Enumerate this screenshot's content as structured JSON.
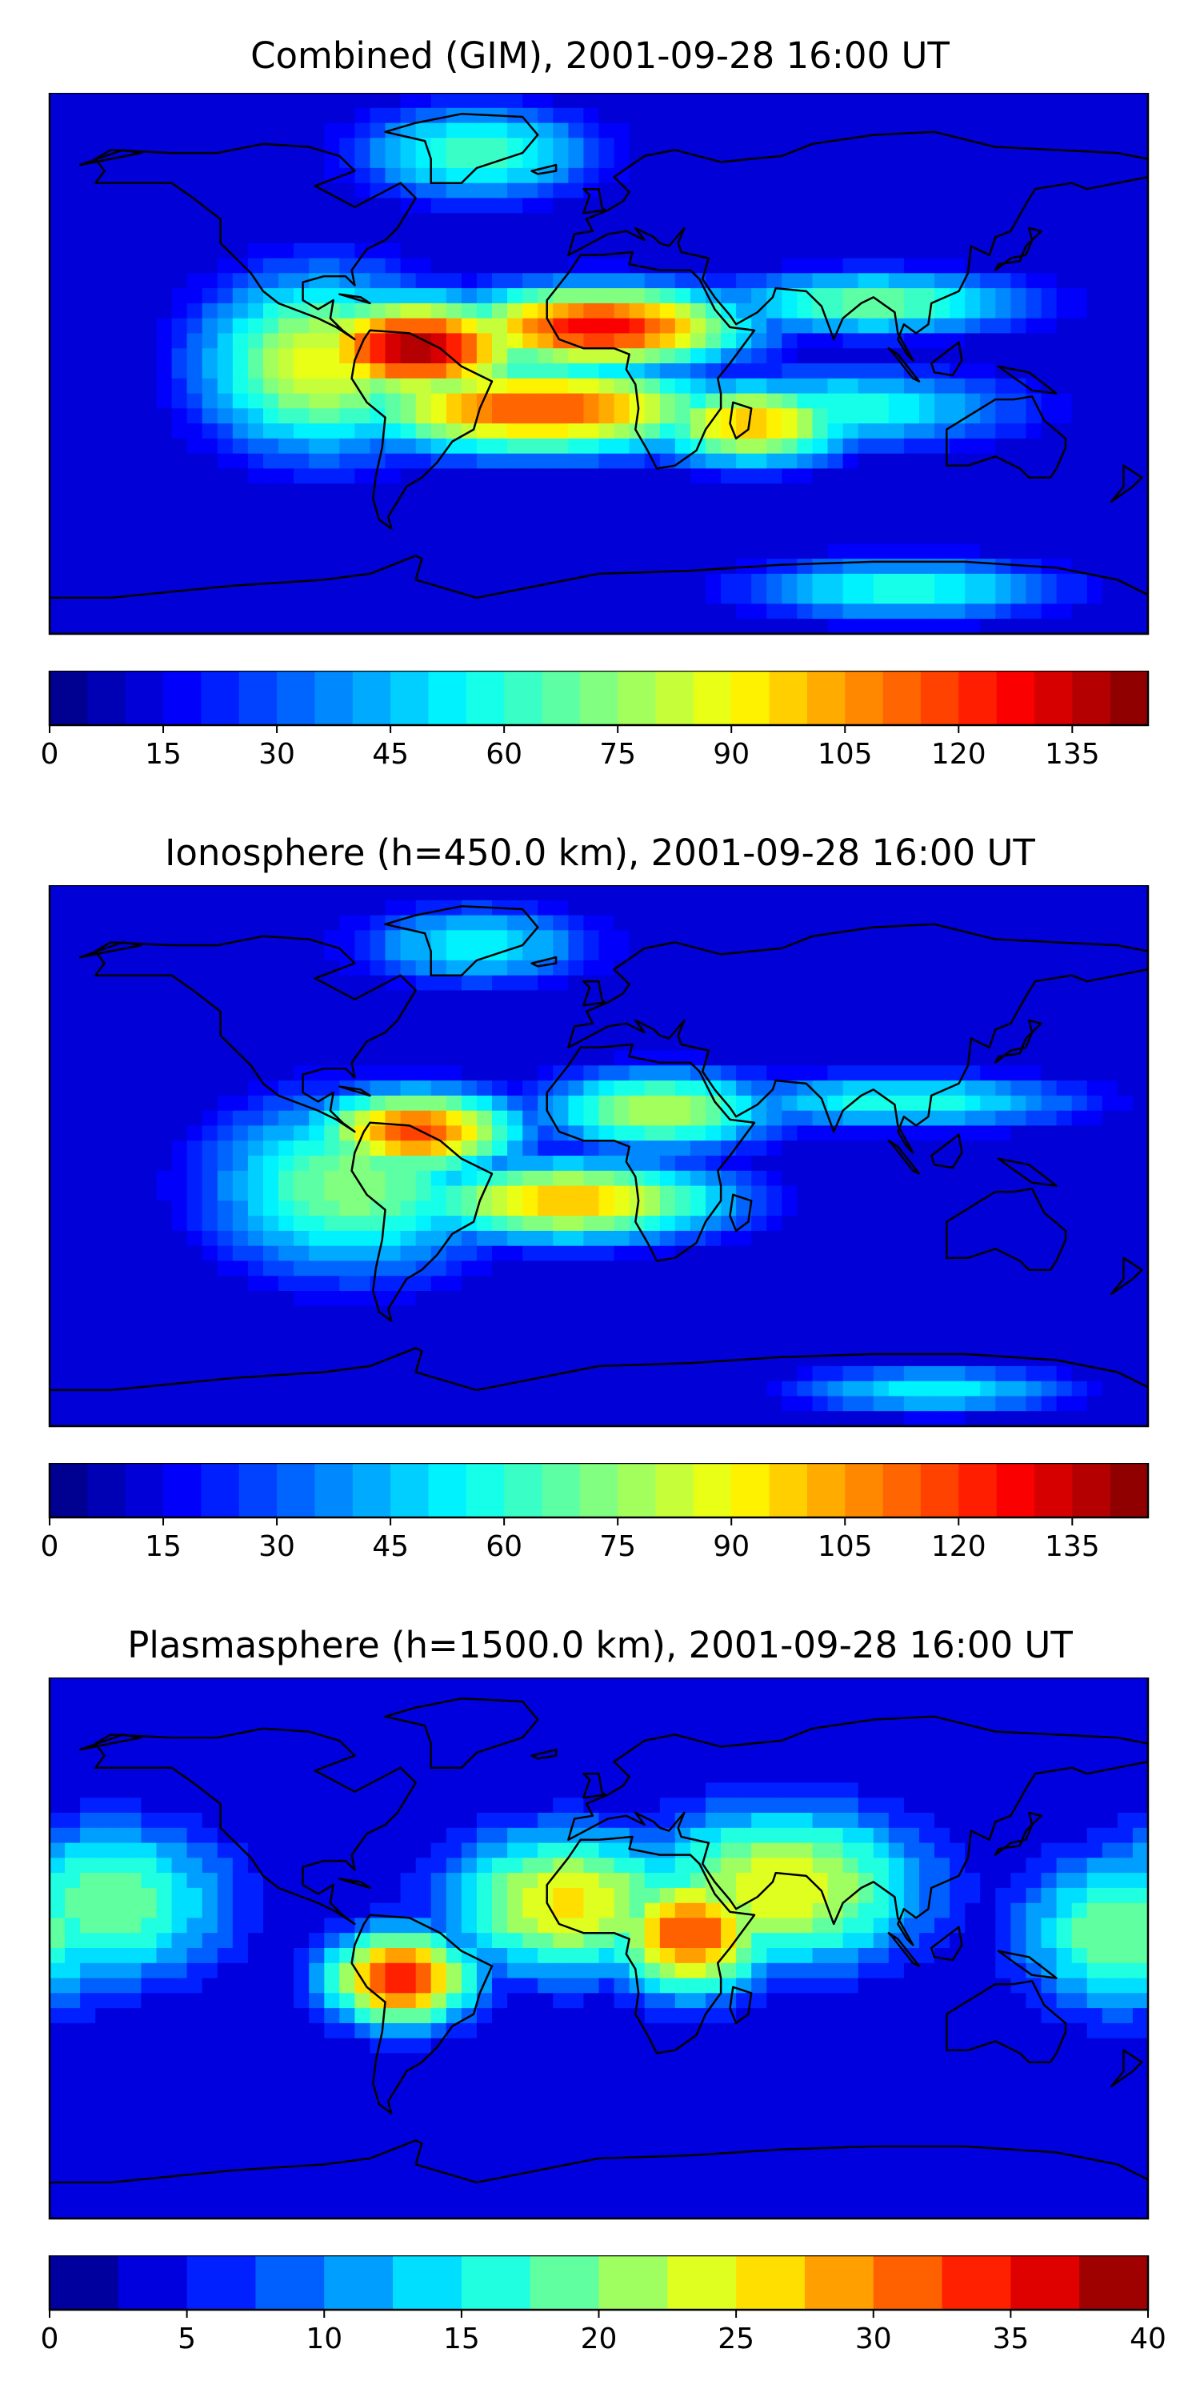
{
  "chart_data": [
    {
      "type": "heatmap",
      "title": "Combined (GIM), 2001-09-28 16:00 UT",
      "colorbar": {
        "min": 0,
        "max": 145,
        "levels": 29,
        "ticks": [
          0,
          15,
          30,
          45,
          60,
          75,
          90,
          105,
          120,
          135
        ]
      },
      "colormap": "jet",
      "x_range": [
        -180,
        180
      ],
      "y_range": [
        -90,
        90
      ],
      "hotspots": [
        {
          "lon": -60,
          "lat": 5,
          "value": 140,
          "spread": [
            28,
            12
          ]
        },
        {
          "lon": 0,
          "lat": 12,
          "value": 130,
          "spread": [
            35,
            10
          ]
        },
        {
          "lon": -20,
          "lat": -15,
          "value": 118,
          "spread": [
            45,
            11
          ]
        },
        {
          "lon": 50,
          "lat": -20,
          "value": 100,
          "spread": [
            25,
            10
          ]
        },
        {
          "lon": -90,
          "lat": 0,
          "value": 90,
          "spread": [
            30,
            22
          ]
        },
        {
          "lon": 90,
          "lat": 20,
          "value": 70,
          "spread": [
            40,
            8
          ]
        },
        {
          "lon": 80,
          "lat": -15,
          "value": 60,
          "spread": [
            45,
            10
          ]
        },
        {
          "lon": -40,
          "lat": 70,
          "value": 65,
          "spread": [
            30,
            12
          ]
        },
        {
          "lon": 100,
          "lat": -75,
          "value": 60,
          "spread": [
            40,
            8
          ]
        }
      ]
    },
    {
      "type": "heatmap",
      "title": "Ionosphere  (h=450.0 km), 2001-09-28 16:00 UT",
      "colorbar": {
        "min": 0,
        "max": 145,
        "levels": 29,
        "ticks": [
          0,
          15,
          30,
          45,
          60,
          75,
          90,
          105,
          120,
          135
        ]
      },
      "colormap": "jet",
      "x_range": [
        -180,
        180
      ],
      "y_range": [
        -90,
        90
      ],
      "hotspots": [
        {
          "lon": -60,
          "lat": 8,
          "value": 118,
          "spread": [
            25,
            10
          ]
        },
        {
          "lon": -10,
          "lat": -15,
          "value": 100,
          "spread": [
            40,
            10
          ]
        },
        {
          "lon": -80,
          "lat": -10,
          "value": 75,
          "spread": [
            35,
            22
          ]
        },
        {
          "lon": 20,
          "lat": 15,
          "value": 80,
          "spread": [
            30,
            10
          ]
        },
        {
          "lon": 100,
          "lat": 18,
          "value": 60,
          "spread": [
            45,
            7
          ]
        },
        {
          "lon": -40,
          "lat": 70,
          "value": 55,
          "spread": [
            30,
            10
          ]
        },
        {
          "lon": 110,
          "lat": -78,
          "value": 55,
          "spread": [
            35,
            6
          ]
        }
      ]
    },
    {
      "type": "heatmap",
      "title": "Plasmasphere (h=1500.0 km), 2001-09-28 16:00 UT",
      "colorbar": {
        "min": 0,
        "max": 40,
        "levels": 16,
        "ticks": [
          0,
          5,
          10,
          15,
          20,
          25,
          30,
          35,
          40
        ]
      },
      "colormap": "jet",
      "x_range": [
        -180,
        180
      ],
      "y_range": [
        -90,
        90
      ],
      "hotspots": [
        {
          "lon": -65,
          "lat": -10,
          "value": 34,
          "spread": [
            18,
            12
          ]
        },
        {
          "lon": 30,
          "lat": 5,
          "value": 33,
          "spread": [
            20,
            15
          ]
        },
        {
          "lon": -10,
          "lat": 15,
          "value": 26,
          "spread": [
            30,
            18
          ]
        },
        {
          "lon": 60,
          "lat": 20,
          "value": 25,
          "spread": [
            35,
            20
          ]
        },
        {
          "lon": -160,
          "lat": 15,
          "value": 20,
          "spread": [
            30,
            20
          ]
        },
        {
          "lon": 170,
          "lat": 5,
          "value": 20,
          "spread": [
            25,
            20
          ]
        }
      ]
    }
  ]
}
